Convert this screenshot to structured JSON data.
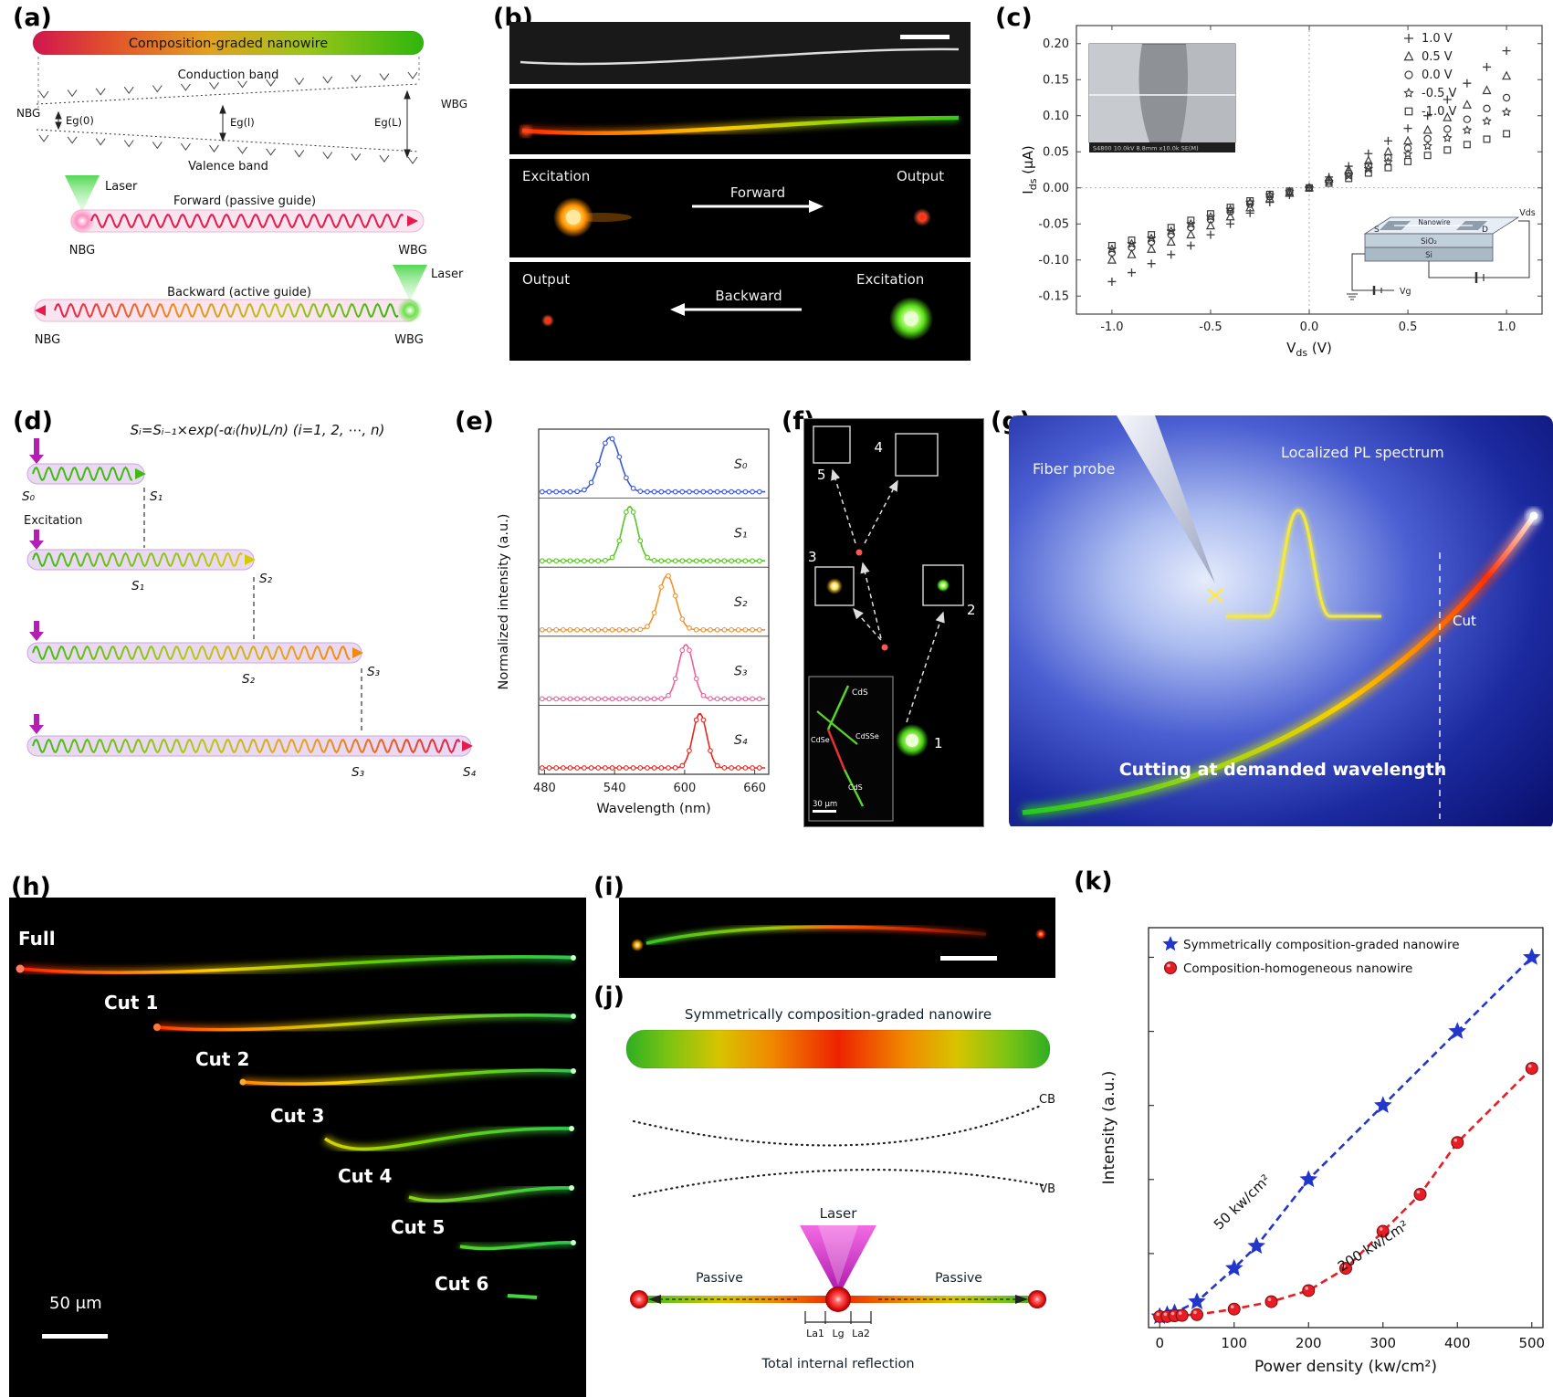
{
  "panels": {
    "a": {
      "label": "(a)",
      "wire_title": "Composition-graded nanowire",
      "nbg": "NBG",
      "wbg": "WBG",
      "conduction_band": "Conduction band",
      "valence_band": "Valence band",
      "eg0": "Eg(0)",
      "egl": "Eg(l)",
      "egL": "Eg(L)",
      "laser": "Laser",
      "forward": "Forward (passive guide)",
      "backward": "Backward (active guide)"
    },
    "b": {
      "label": "(b)",
      "excitation": "Excitation",
      "output": "Output",
      "forward": "Forward",
      "backward": "Backward"
    },
    "c": {
      "label": "(c)",
      "sem_caption": "S4800 10.0kV 8.8mm x10.0k SE(M)",
      "circuit": {
        "s": "S",
        "nanowire": "Nanowire",
        "d": "D",
        "sio2": "SiO₂",
        "si": "Si",
        "vds": "Vds",
        "vg": "Vg"
      }
    },
    "d": {
      "label": "(d)",
      "formula": "Sᵢ=Sᵢ₋₁×exp(-αᵢ(hν)L/n)   (i=1, 2, ⋯, n)",
      "excitation": "Excitation",
      "s0": "S₀",
      "s1": "S₁",
      "s2": "S₂",
      "s3": "S₃",
      "s4": "S₄"
    },
    "e": {
      "label": "(e)"
    },
    "f": {
      "label": "(f)",
      "n1": "1",
      "n2": "2",
      "n3": "3",
      "n4": "4",
      "n5": "5",
      "mat1": "CdS",
      "mat2": "CdSSe",
      "mat3": "CdSe",
      "mat4": "CdS",
      "scale": "30 μm"
    },
    "g": {
      "label": "(g)",
      "fiber_probe": "Fiber probe",
      "pl_spectrum": "Localized PL spectrum",
      "cut": "Cut",
      "caption": "Cutting at demanded wavelength"
    },
    "h": {
      "label": "(h)",
      "cuts": [
        "Full",
        "Cut 1",
        "Cut 2",
        "Cut 3",
        "Cut 4",
        "Cut 5",
        "Cut 6"
      ],
      "scale": "50 μm"
    },
    "i": {
      "label": "(i)"
    },
    "j": {
      "label": "(j)",
      "title": "Symmetrically composition-graded nanowire",
      "cb": "CB",
      "vb": "VB",
      "laser": "Laser",
      "passive": "Passive",
      "la1": "La1",
      "lg": "Lg",
      "la2": "La2",
      "tir": "Total internal reflection"
    },
    "k": {
      "label": "(k)"
    }
  },
  "chart_data": [
    {
      "id": "c",
      "type": "scatter",
      "xlabel_parts": [
        "V",
        "ds",
        " (V)"
      ],
      "ylabel_parts": [
        "I",
        "ds",
        " (μA)"
      ],
      "xlim": [
        -1.18,
        1.18
      ],
      "ylim": [
        -0.175,
        0.225
      ],
      "xticks": [
        -1.0,
        -0.5,
        0.0,
        0.5,
        1.0
      ],
      "xtick_labels": [
        "-1.0",
        "-0.5",
        "0.0",
        "0.5",
        "1.0"
      ],
      "yticks": [
        -0.15,
        -0.1,
        -0.05,
        0.0,
        0.05,
        0.1,
        0.15,
        0.2
      ],
      "ytick_labels": [
        "-0.15",
        "-0.10",
        "-0.05",
        "0.00",
        "0.05",
        "0.10",
        "0.15",
        "0.20"
      ],
      "x": [
        -1.0,
        -0.8,
        -0.6,
        -0.4,
        -0.2,
        0.0,
        0.2,
        0.4,
        0.6,
        0.8,
        1.0
      ],
      "series": [
        {
          "name": "1.0 V",
          "marker": "plus",
          "values": [
            -0.13,
            -0.105,
            -0.08,
            -0.05,
            -0.02,
            0.0,
            0.03,
            0.065,
            0.1,
            0.145,
            0.19
          ]
        },
        {
          "name": "0.5 V",
          "marker": "triangle",
          "values": [
            -0.1,
            -0.085,
            -0.065,
            -0.04,
            -0.015,
            0.0,
            0.025,
            0.05,
            0.08,
            0.115,
            0.155
          ]
        },
        {
          "name": "0.0 V",
          "marker": "circle",
          "values": [
            -0.09,
            -0.075,
            -0.055,
            -0.033,
            -0.012,
            0.0,
            0.02,
            0.042,
            0.068,
            0.095,
            0.125
          ]
        },
        {
          "name": "-0.5 V",
          "marker": "star",
          "values": [
            -0.085,
            -0.07,
            -0.05,
            -0.03,
            -0.01,
            0.0,
            0.017,
            0.036,
            0.058,
            0.08,
            0.105
          ]
        },
        {
          "name": "-1.0 V",
          "marker": "square",
          "values": [
            -0.08,
            -0.065,
            -0.045,
            -0.027,
            -0.009,
            0.0,
            0.013,
            0.028,
            0.045,
            0.06,
            0.075
          ]
        }
      ]
    },
    {
      "id": "e",
      "type": "line",
      "xlabel": "Wavelength (nm)",
      "ylabel": "Normalized intensity (a.u.)",
      "xlim": [
        475,
        672
      ],
      "xticks": [
        480,
        540,
        600,
        660
      ],
      "xtick_labels": [
        "480",
        "540",
        "600",
        "660"
      ],
      "spectra": [
        {
          "name": "S₀",
          "peak_nm": 536,
          "fwhm_nm": 20,
          "color": "#3a57d6"
        },
        {
          "name": "S₁",
          "peak_nm": 553,
          "fwhm_nm": 15,
          "color": "#58c623"
        },
        {
          "name": "S₂",
          "peak_nm": 585,
          "fwhm_nm": 17,
          "color": "#f0922b"
        },
        {
          "name": "S₃",
          "peak_nm": 601,
          "fwhm_nm": 15,
          "color": "#ef5f9e"
        },
        {
          "name": "S₄",
          "peak_nm": 613,
          "fwhm_nm": 14,
          "color": "#e3271f"
        }
      ]
    },
    {
      "id": "k",
      "type": "scatter",
      "xlabel": "Power density (kw/cm²)",
      "ylabel": "Intensity (a.u.)",
      "xlim": [
        -15,
        515
      ],
      "ylim": [
        0,
        1.08
      ],
      "xticks": [
        0,
        100,
        200,
        300,
        400,
        500
      ],
      "xtick_labels": [
        "0",
        "100",
        "200",
        "300",
        "400",
        "500"
      ],
      "series": [
        {
          "name": "Symmetrically composition-graded nanowire",
          "color": "#2236cc",
          "marker": "star",
          "x": [
            0,
            10,
            20,
            50,
            100,
            130,
            200,
            300,
            400,
            500
          ],
          "y": [
            0.03,
            0.035,
            0.04,
            0.07,
            0.16,
            0.22,
            0.4,
            0.6,
            0.8,
            1.0
          ]
        },
        {
          "name": "Composition-homogeneous nanowire",
          "color": "#e81c24",
          "marker": "circle",
          "x": [
            0,
            10,
            20,
            30,
            50,
            100,
            150,
            200,
            250,
            300,
            350,
            400,
            500
          ],
          "y": [
            0.03,
            0.03,
            0.032,
            0.033,
            0.035,
            0.05,
            0.07,
            0.1,
            0.16,
            0.26,
            0.36,
            0.5,
            0.7
          ]
        }
      ],
      "annotations": [
        {
          "text": "50 kw/cm²",
          "x": 115,
          "y": 0.33,
          "rot": -44
        },
        {
          "text": "200 kw/cm²",
          "x": 290,
          "y": 0.21,
          "rot": -33
        }
      ]
    }
  ]
}
